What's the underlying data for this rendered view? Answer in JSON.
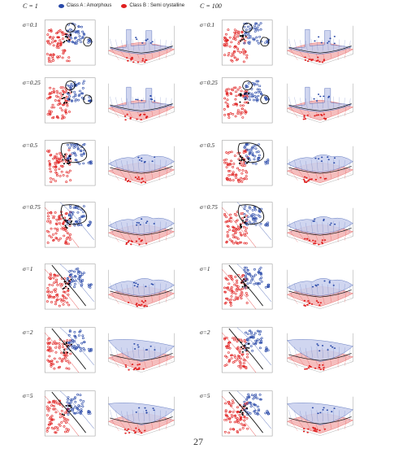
{
  "headers": {
    "left": "C = 1",
    "right": "C = 100"
  },
  "legend": [
    {
      "label": "Class A : Amorphous",
      "color": "#2848a8"
    },
    {
      "label": "Class B : Semi crystalline",
      "color": "#e02020"
    }
  ],
  "rows": [
    {
      "sigma": "σ=0.1"
    },
    {
      "sigma": "σ=0.25"
    },
    {
      "sigma": "σ=0.5"
    },
    {
      "sigma": "σ=0.75"
    },
    {
      "sigma": "σ=1"
    },
    {
      "sigma": "σ=2"
    },
    {
      "sigma": "σ=5"
    }
  ],
  "page_number": "27",
  "colors": {
    "class_a": "#2848a8",
    "class_b": "#e02020",
    "boundary": "#111111"
  }
}
